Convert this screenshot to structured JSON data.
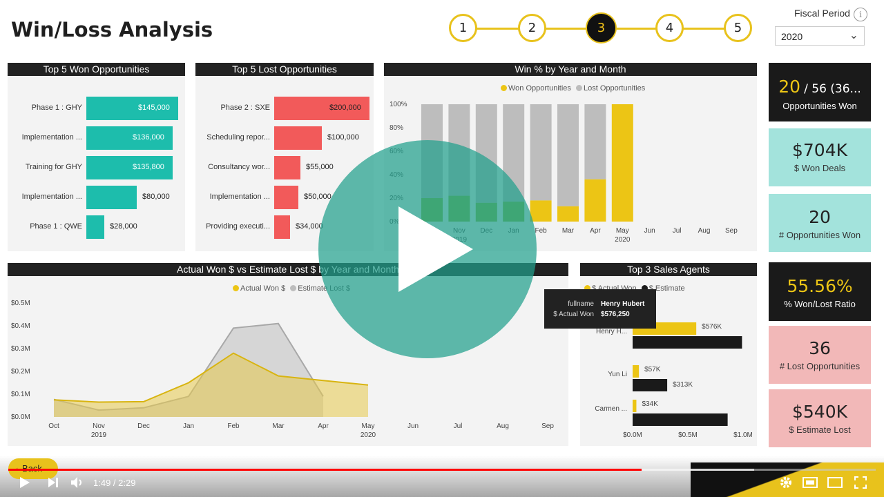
{
  "header": {
    "title": "Win/Loss Analysis",
    "steps": [
      "1",
      "2",
      "3",
      "4",
      "5"
    ],
    "active_step": 3,
    "fiscal_label": "Fiscal Period",
    "fiscal_value": "2020"
  },
  "top_won": {
    "title": "Top 5 Won Opportunities",
    "rows": [
      {
        "label": "Phase 1 : GHY",
        "value": "$145,000",
        "amount": 145000
      },
      {
        "label": "Implementation ...",
        "value": "$136,000",
        "amount": 136000
      },
      {
        "label": "Training for GHY",
        "value": "$135,800",
        "amount": 135800
      },
      {
        "label": "Implementation ...",
        "value": "$80,000",
        "amount": 80000
      },
      {
        "label": "Phase 1 : QWE",
        "value": "$28,000",
        "amount": 28000
      }
    ]
  },
  "top_lost": {
    "title": "Top 5 Lost Opportunities",
    "rows": [
      {
        "label": "Phase 2 : SXE",
        "value": "$200,000",
        "amount": 200000
      },
      {
        "label": "Scheduling repor...",
        "value": "$100,000",
        "amount": 100000
      },
      {
        "label": "Consultancy wor...",
        "value": "$55,000",
        "amount": 55000
      },
      {
        "label": "Implementation ...",
        "value": "$50,000",
        "amount": 50000
      },
      {
        "label": "Providing executi...",
        "value": "$34,000",
        "amount": 34000
      }
    ]
  },
  "win_pct": {
    "title": "Win % by Year and Month",
    "legend": [
      "Won Opportunities",
      "Lost Opportunities"
    ]
  },
  "actual_vs_est": {
    "title": "Actual Won $ vs Estimate Lost $ by Year and Month",
    "legend": [
      "Actual Won $",
      "Estimate Lost $"
    ]
  },
  "agents": {
    "title": "Top 3 Sales Agents",
    "legend": [
      "$ Actual Won",
      "$ Estimate"
    ],
    "tooltip": {
      "k1": "fullname",
      "v1": "Henry Hubert",
      "k2": "$ Actual Won",
      "v2": "$576,250"
    }
  },
  "kpis": {
    "opp_won_a": "20",
    "opp_won_b": "/ 56 (36...",
    "opp_won_label": "Opportunities Won",
    "won_deals": "$704K",
    "won_deals_label": "$ Won Deals",
    "num_won": "20",
    "num_won_label": "# Opportunities Won",
    "ratio": "55.56%",
    "ratio_label": "% Won/Lost Ratio",
    "lost": "36",
    "lost_label": "# Lost Opportunities",
    "est_lost": "$540K",
    "est_lost_label": "$ Estimate Lost"
  },
  "player": {
    "back_label": "Back",
    "time": "1:49 / 2:29",
    "progress": 0.73,
    "buffered": 0.86
  },
  "colors": {
    "teal": "#1dbdac",
    "red": "#f25a5a",
    "yellow": "#ecc515",
    "grey": "#bdbdbd",
    "green": "#8ab63a",
    "dark": "#1a1a1a",
    "kpi_teal": "#a3e3dc",
    "kpi_pink": "#f2b8b8"
  },
  "chart_data": [
    {
      "type": "bar",
      "title": "Win % by Year and Month",
      "categories": [
        "Oct 2019",
        "Nov 2019",
        "Dec 2019",
        "Jan 2019",
        "Feb 2019",
        "Mar 2019",
        "Apr 2019",
        "May 2020",
        "Jun 2020",
        "Jul 2020",
        "Aug 2020",
        "Sep 2020"
      ],
      "x_ticks": [
        "Oct",
        "Nov",
        "Dec",
        "Jan",
        "Feb",
        "Mar",
        "Apr",
        "May",
        "Jun",
        "Jul",
        "Aug",
        "Sep"
      ],
      "x_year_ticks": [
        {
          "label": "2019",
          "at": 1
        },
        {
          "label": "2020",
          "at": 7
        }
      ],
      "y_ticks": [
        "0%",
        "20%",
        "40%",
        "60%",
        "80%",
        "100%"
      ],
      "series": [
        {
          "name": "Won Opportunities",
          "values": [
            20,
            22,
            16,
            17,
            18,
            13,
            36,
            100,
            null,
            null,
            null,
            null
          ]
        },
        {
          "name": "Lost Opportunities",
          "values": [
            80,
            78,
            84,
            83,
            82,
            87,
            64,
            0,
            null,
            null,
            null,
            null
          ]
        }
      ],
      "ylim": [
        0,
        100
      ]
    },
    {
      "type": "area",
      "title": "Actual Won $ vs Estimate Lost $ by Year and Month",
      "x": [
        "Oct",
        "Nov",
        "Dec",
        "Jan",
        "Feb",
        "Mar",
        "Apr",
        "May",
        "Jun",
        "Jul",
        "Aug",
        "Sep"
      ],
      "x_year_ticks": [
        {
          "label": "2019",
          "at": 1
        },
        {
          "label": "2020",
          "at": 7
        }
      ],
      "y_ticks": [
        "$0.0M",
        "$0.1M",
        "$0.2M",
        "$0.3M",
        "$0.4M",
        "$0.5M"
      ],
      "series": [
        {
          "name": "Actual Won $",
          "values": [
            0.075,
            0.065,
            0.067,
            0.15,
            0.28,
            0.18,
            0.16,
            0.14,
            null,
            null,
            null,
            null
          ]
        },
        {
          "name": "Estimate Lost $",
          "values": [
            0.077,
            0.03,
            0.04,
            0.09,
            0.39,
            0.41,
            0.09,
            null,
            null,
            null,
            null,
            null
          ]
        }
      ],
      "ylim": [
        0,
        0.5
      ]
    },
    {
      "type": "bar",
      "title": "Top 3 Sales Agents",
      "orientation": "horizontal",
      "categories": [
        "Henry H...",
        "Yun Li",
        "Carmen ..."
      ],
      "x_ticks": [
        "$0.0M",
        "$0.5M",
        "$1.0M"
      ],
      "series": [
        {
          "name": "$ Actual Won",
          "values": [
            0.576,
            0.057,
            0.034
          ],
          "labels": [
            "$576K",
            "$57K",
            "$34K"
          ]
        },
        {
          "name": "$ Estimate",
          "values": [
            0.99,
            0.313,
            0.86
          ],
          "labels": [
            "",
            "$313K",
            ""
          ]
        }
      ],
      "xlim": [
        0,
        1
      ]
    }
  ]
}
